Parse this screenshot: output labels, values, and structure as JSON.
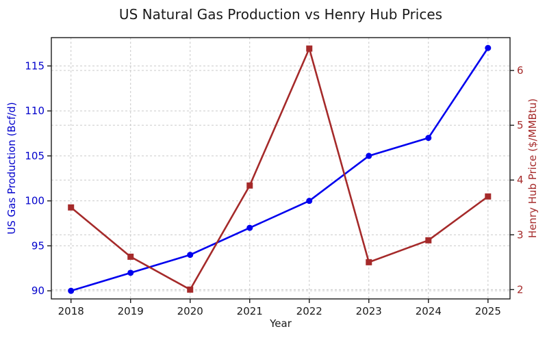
{
  "chart_data": {
    "type": "line",
    "title": "US Natural Gas Production vs Henry Hub Prices",
    "xlabel": "Year",
    "categories": [
      "2018",
      "2019",
      "2020",
      "2021",
      "2022",
      "2023",
      "2024",
      "2025"
    ],
    "series": [
      {
        "name": "US Gas Production (Bcf/d)",
        "axis": "left",
        "color": "#0000ee",
        "marker": "circle",
        "values": [
          90,
          92,
          94,
          97,
          100,
          105,
          107,
          117
        ]
      },
      {
        "name": "Henry Hub Price ($/MMBtu)",
        "axis": "right",
        "color": "#a52a2a",
        "marker": "square",
        "values": [
          3.5,
          2.6,
          2.0,
          3.9,
          6.4,
          2.5,
          2.9,
          3.7
        ]
      }
    ],
    "left_axis": {
      "label": "US Gas Production (Bcf/d)",
      "color": "#0000cc",
      "ticks": [
        90,
        95,
        100,
        105,
        110,
        115
      ],
      "ylim": [
        89.1,
        118.15
      ]
    },
    "right_axis": {
      "label": "Henry Hub Price ($/MMBtu)",
      "color": "#a52a2a",
      "ticks": [
        2,
        3,
        4,
        5,
        6
      ],
      "ylim": [
        1.83,
        6.6
      ]
    },
    "x_axis": {
      "label": "Year",
      "tick_color": "#1a1a1a",
      "xlim": [
        2017.67,
        2025.37
      ]
    },
    "grid": true,
    "legend": "none",
    "colors": {
      "grid": "#c9c9c9",
      "spine": "#1a1a1a",
      "background": "#ffffff"
    }
  }
}
